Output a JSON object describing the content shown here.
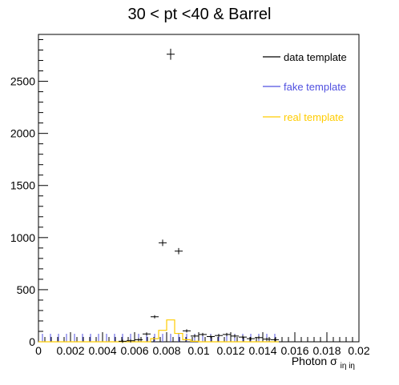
{
  "chart_data": {
    "type": "histogram",
    "title": "30 < pt <40 & Barrel",
    "xlabel": {
      "base": "Photon σ",
      "sub": "iη iη"
    },
    "ylabel": "",
    "xlim": [
      0,
      0.02
    ],
    "ylim": [
      0,
      2950
    ],
    "x_tick_labels": [
      "0",
      "0.002",
      "0.004",
      "0.006",
      "0.008",
      "0.01",
      "0.012",
      "0.014",
      "0.016",
      "0.018",
      "0.02"
    ],
    "y_tick_labels": [
      "0",
      "500",
      "1000",
      "1500",
      "2000",
      "2500"
    ],
    "bin_width": 0.0005,
    "legend": {
      "placement": "top-right"
    },
    "series": [
      {
        "name": "data template",
        "style": "markers",
        "color": "#000000",
        "values": [
          0,
          0,
          0,
          0,
          0,
          0,
          0,
          0,
          0,
          0,
          5,
          10,
          20,
          75,
          240,
          950,
          2760,
          870,
          105,
          55,
          70,
          50,
          60,
          70,
          55,
          45,
          30,
          40,
          25,
          20
        ]
      },
      {
        "name": "fake template",
        "style": "step",
        "color": "#5050e0",
        "values": [
          0,
          0,
          0,
          0,
          0,
          0,
          0,
          0,
          0,
          0,
          0,
          0,
          0,
          0,
          0,
          0,
          0,
          0,
          0,
          0,
          0,
          0,
          0,
          0,
          0,
          0,
          0,
          0,
          0,
          0
        ]
      },
      {
        "name": "real template",
        "style": "step",
        "color": "#ffcc00",
        "values": [
          0,
          0,
          0,
          0,
          0,
          0,
          0,
          0,
          0,
          0,
          0,
          0,
          0,
          0,
          30,
          110,
          210,
          80,
          20,
          5,
          0,
          0,
          0,
          0,
          0,
          0,
          0,
          0,
          0,
          0
        ]
      }
    ]
  }
}
